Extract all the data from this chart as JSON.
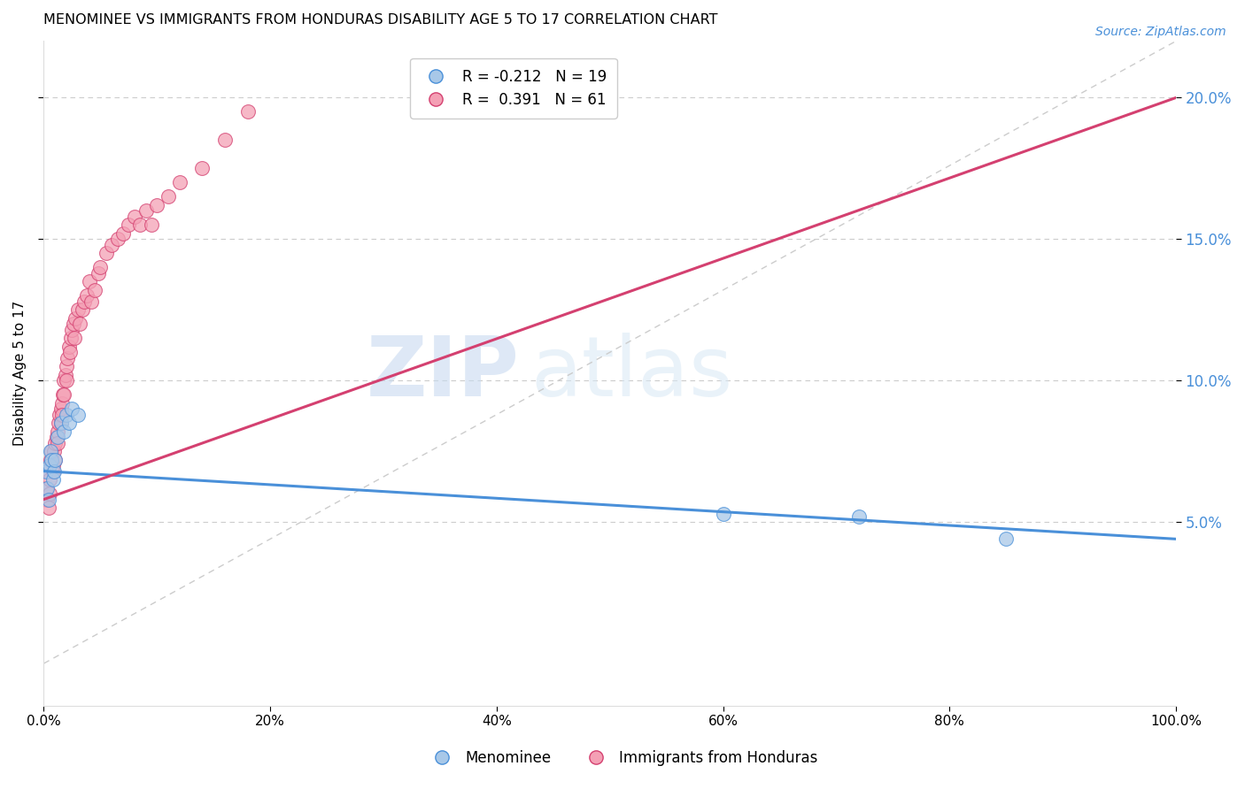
{
  "title": "MENOMINEE VS IMMIGRANTS FROM HONDURAS DISABILITY AGE 5 TO 17 CORRELATION CHART",
  "source": "Source: ZipAtlas.com",
  "ylabel": "Disability Age 5 to 17",
  "xlim": [
    0,
    1.0
  ],
  "ylim": [
    -0.015,
    0.22
  ],
  "xticks": [
    0.0,
    0.2,
    0.4,
    0.6,
    0.8,
    1.0
  ],
  "yticks_right": [
    0.05,
    0.1,
    0.15,
    0.2
  ],
  "legend_r1": "R = -0.212",
  "legend_n1": "N = 19",
  "legend_r2": "R =  0.391",
  "legend_n2": "N = 61",
  "color_blue": "#a8c8e8",
  "color_pink": "#f4a0b5",
  "color_blue_line": "#4a90d9",
  "color_pink_line": "#d44070",
  "color_diag": "#cccccc",
  "watermark_zip": "ZIP",
  "watermark_atlas": "atlas",
  "blue_scatter_x": [
    0.002,
    0.003,
    0.004,
    0.005,
    0.006,
    0.007,
    0.008,
    0.009,
    0.01,
    0.012,
    0.015,
    0.018,
    0.02,
    0.022,
    0.025,
    0.03,
    0.6,
    0.72,
    0.85
  ],
  "blue_scatter_y": [
    0.068,
    0.062,
    0.058,
    0.07,
    0.075,
    0.072,
    0.065,
    0.068,
    0.072,
    0.08,
    0.085,
    0.082,
    0.088,
    0.085,
    0.09,
    0.088,
    0.053,
    0.052,
    0.044
  ],
  "pink_scatter_x": [
    0.002,
    0.003,
    0.004,
    0.004,
    0.005,
    0.005,
    0.006,
    0.007,
    0.008,
    0.008,
    0.009,
    0.01,
    0.01,
    0.011,
    0.012,
    0.012,
    0.013,
    0.014,
    0.015,
    0.015,
    0.016,
    0.016,
    0.017,
    0.018,
    0.018,
    0.019,
    0.02,
    0.02,
    0.021,
    0.022,
    0.023,
    0.024,
    0.025,
    0.026,
    0.027,
    0.028,
    0.03,
    0.032,
    0.034,
    0.036,
    0.038,
    0.04,
    0.042,
    0.045,
    0.048,
    0.05,
    0.055,
    0.06,
    0.065,
    0.07,
    0.075,
    0.08,
    0.085,
    0.09,
    0.095,
    0.1,
    0.11,
    0.12,
    0.14,
    0.16,
    0.18
  ],
  "pink_scatter_y": [
    0.062,
    0.058,
    0.068,
    0.055,
    0.065,
    0.06,
    0.072,
    0.075,
    0.068,
    0.07,
    0.075,
    0.078,
    0.072,
    0.08,
    0.082,
    0.078,
    0.085,
    0.088,
    0.09,
    0.085,
    0.092,
    0.088,
    0.095,
    0.1,
    0.095,
    0.102,
    0.105,
    0.1,
    0.108,
    0.112,
    0.11,
    0.115,
    0.118,
    0.12,
    0.115,
    0.122,
    0.125,
    0.12,
    0.125,
    0.128,
    0.13,
    0.135,
    0.128,
    0.132,
    0.138,
    0.14,
    0.145,
    0.148,
    0.15,
    0.152,
    0.155,
    0.158,
    0.155,
    0.16,
    0.155,
    0.162,
    0.165,
    0.17,
    0.175,
    0.185,
    0.195
  ],
  "blue_line_x": [
    0.0,
    1.0
  ],
  "blue_line_y": [
    0.068,
    0.044
  ],
  "pink_line_x": [
    0.0,
    1.0
  ],
  "pink_line_y": [
    0.058,
    0.2
  ]
}
